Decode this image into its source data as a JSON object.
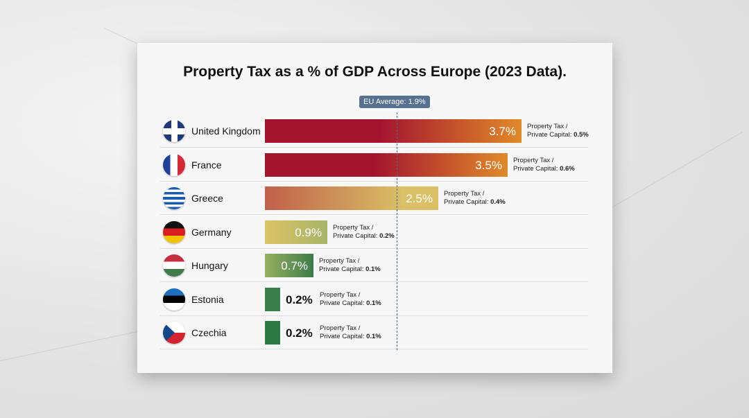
{
  "chart_data": {
    "type": "bar",
    "orientation": "horizontal",
    "title": "Property Tax as a % of GDP Across Europe (2023 Data).",
    "unit": "%",
    "reference_line": {
      "label": "EU Average: 1.9%",
      "value": 1.9
    },
    "note_prefix": "Property Tax /",
    "note_label": "Private Capital:",
    "categories": [
      "United Kingdom",
      "France",
      "Greece",
      "Germany",
      "Hungary",
      "Estonia",
      "Czechia"
    ],
    "values": [
      3.7,
      3.5,
      2.5,
      0.9,
      0.7,
      0.2,
      0.2
    ],
    "value_labels": [
      "3.7%",
      "3.5%",
      "2.5%",
      "0.9%",
      "0.7%",
      "0.2%",
      "0.2%"
    ],
    "secondary_values": [
      "0.5%",
      "0.6%",
      "0.4%",
      "0.2%",
      "0.1%",
      "0.1%",
      "0.1%"
    ],
    "flag_icons": [
      "uk-flag-icon",
      "france-flag-icon",
      "greece-flag-icon",
      "germany-flag-icon",
      "hungary-flag-icon",
      "estonia-flag-icon",
      "czechia-flag-icon"
    ],
    "colors": {
      "high": "#a3152f",
      "mid": "#e08a2a",
      "yellow": "#d9c066",
      "green": "#2e7a45",
      "avg_line": "#4a6a94"
    }
  }
}
